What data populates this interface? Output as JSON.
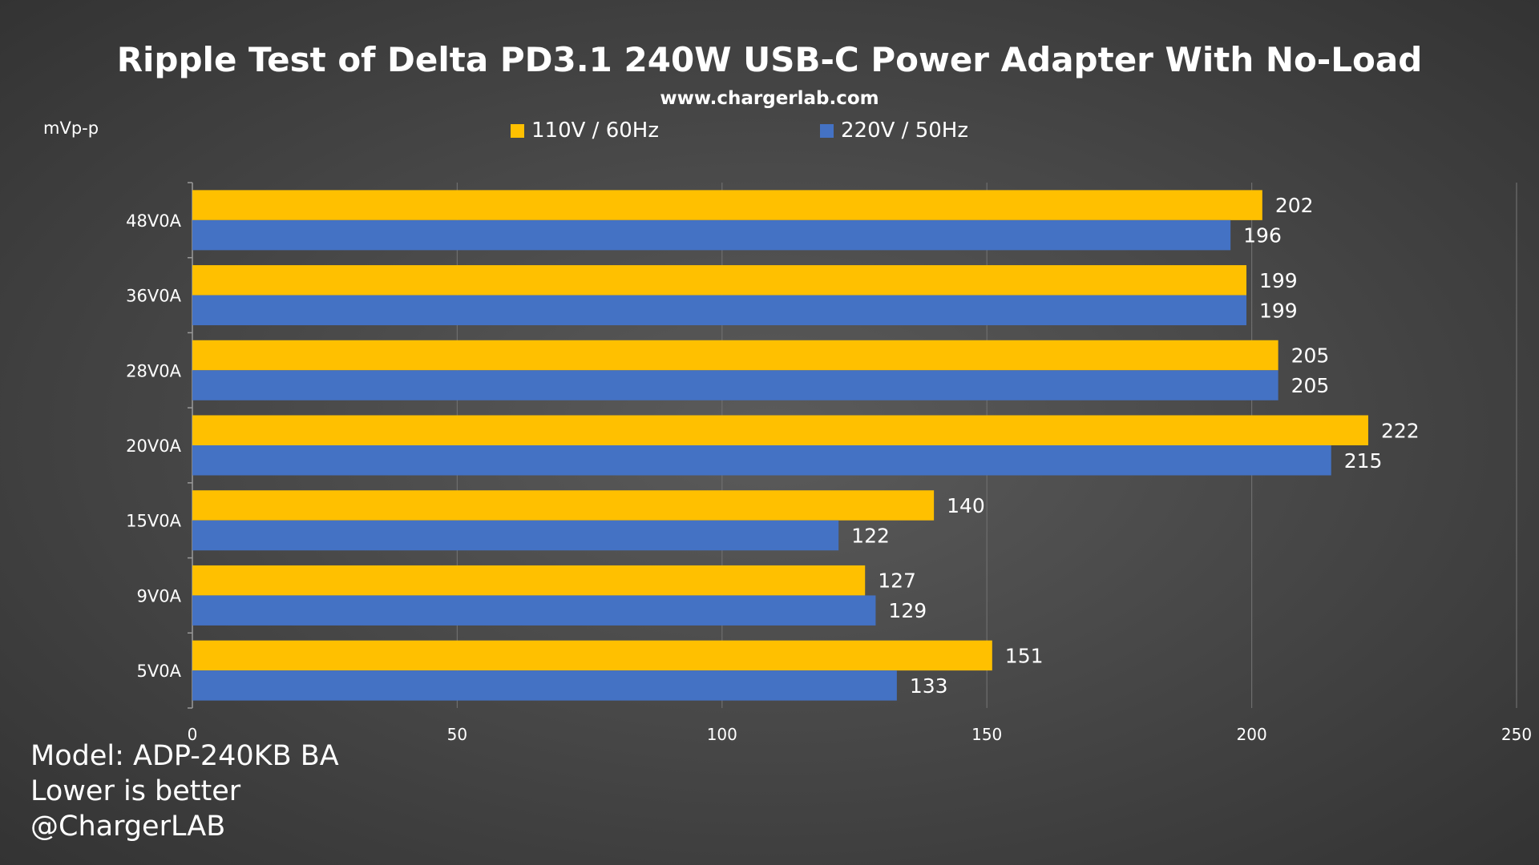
{
  "chart_data": {
    "type": "bar",
    "orientation": "horizontal",
    "title": "Ripple Test of Delta PD3.1 240W USB-C Power Adapter With No-Load",
    "subtitle": "www.chargerlab.com",
    "unit_label": "mVp-p",
    "categories": [
      "48V0A",
      "36V0A",
      "28V0A",
      "20V0A",
      "15V0A",
      "9V0A",
      "5V0A"
    ],
    "series": [
      {
        "name": "110V / 60Hz",
        "color": "#ffc000",
        "values": [
          202,
          199,
          205,
          222,
          140,
          127,
          151
        ]
      },
      {
        "name": "220V / 50Hz",
        "color": "#4472c4",
        "values": [
          196,
          199,
          205,
          215,
          122,
          129,
          133
        ]
      }
    ],
    "xlim": [
      0,
      250
    ],
    "xticks": [
      0,
      50,
      100,
      150,
      200,
      250
    ],
    "grid": true,
    "legend_position": "top-center"
  },
  "notes": [
    "Model: ADP-240KB BA",
    "Lower is better",
    "@ChargerLAB"
  ]
}
